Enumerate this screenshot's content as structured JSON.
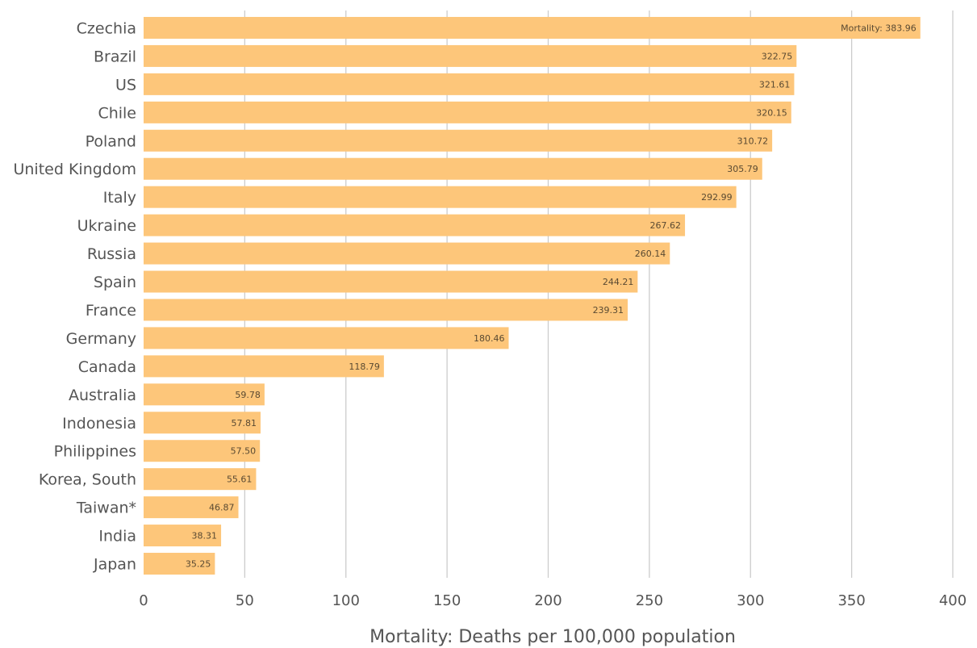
{
  "chart_data": {
    "type": "bar",
    "orientation": "horizontal",
    "categories": [
      "Czechia",
      "Brazil",
      "US",
      "Chile",
      "Poland",
      "United Kingdom",
      "Italy",
      "Ukraine",
      "Russia",
      "Spain",
      "France",
      "Germany",
      "Canada",
      "Australia",
      "Indonesia",
      "Philippines",
      "Korea, South",
      "Taiwan*",
      "India",
      "Japan"
    ],
    "values": [
      383.96,
      322.75,
      321.61,
      320.15,
      310.72,
      305.79,
      292.99,
      267.62,
      260.14,
      244.21,
      239.31,
      180.46,
      118.79,
      59.78,
      57.81,
      57.5,
      55.61,
      46.87,
      38.31,
      35.25
    ],
    "data_labels": [
      "Mortality: 383.96",
      "322.75",
      "321.61",
      "320.15",
      "310.72",
      "305.79",
      "292.99",
      "267.62",
      "260.14",
      "244.21",
      "239.31",
      "180.46",
      "118.79",
      "59.78",
      "57.81",
      "57.50",
      "55.61",
      "46.87",
      "38.31",
      "35.25"
    ],
    "xlabel": "Mortality: Deaths per 100,000 population",
    "ylabel": "",
    "xlim": [
      0,
      400
    ],
    "xticks": [
      "0",
      "50",
      "100",
      "150",
      "200",
      "250",
      "300",
      "350",
      "400"
    ],
    "grid": "vertical",
    "bar_color": "#fdc67a",
    "legend": "none"
  }
}
